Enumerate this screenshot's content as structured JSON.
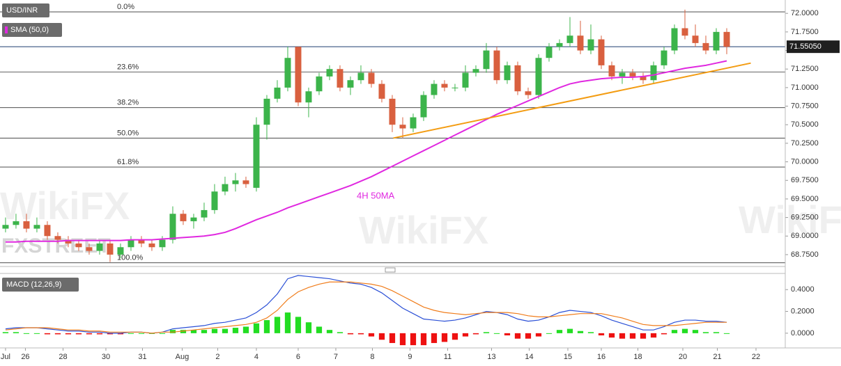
{
  "chart_data": [
    {
      "type": "candlestick",
      "title": "USD/INR",
      "watermark": "WikiFX",
      "source": "FXSTREET",
      "annotation": "4H 50MA",
      "up_color": "#3cb44b",
      "down_color": "#d9603f",
      "xlim": [
        -0.53,
        74.6
      ],
      "ylim": [
        68.59,
        72.18
      ],
      "yticks": [
        {
          "value": 72,
          "label": "72.0000"
        },
        {
          "value": 71.75,
          "label": "71.7500"
        },
        {
          "value": 71.5,
          "label": "71.5000"
        },
        {
          "value": 71.25,
          "label": "71.2500"
        },
        {
          "value": 71,
          "label": "71.0000"
        },
        {
          "value": 70.75,
          "label": "70.7500"
        },
        {
          "value": 70.5,
          "label": "70.5000"
        },
        {
          "value": 70.25,
          "label": "70.2500"
        },
        {
          "value": 70,
          "label": "70.0000"
        },
        {
          "value": 69.75,
          "label": "69.7500"
        },
        {
          "value": 69.5,
          "label": "69.5000"
        },
        {
          "value": 69.25,
          "label": "69.2500"
        },
        {
          "value": 69,
          "label": "69.0000"
        },
        {
          "value": 68.75,
          "label": "68.7500"
        }
      ],
      "last_price": 71.5505,
      "last_price_label": "71.55050",
      "fib_levels": [
        {
          "label": "0.0%",
          "value": 72.02
        },
        {
          "label": "23.6%",
          "value": 71.21
        },
        {
          "label": "38.2%",
          "value": 70.73
        },
        {
          "label": "50.0%",
          "value": 70.32
        },
        {
          "label": "61.8%",
          "value": 69.93
        },
        {
          "label": "100.0%",
          "value": 68.64
        }
      ],
      "trendline": {
        "color": "#f39c12",
        "x": [
          37.1,
          71.3
        ],
        "values": [
          70.32,
          71.33
        ]
      },
      "ohlc": [
        [
          69.1,
          69.25,
          69.05,
          69.15
        ],
        [
          69.15,
          69.3,
          69.1,
          69.2
        ],
        [
          69.2,
          69.3,
          69.05,
          69.1
        ],
        [
          69.1,
          69.25,
          69.05,
          69.15
        ],
        [
          69.15,
          69.2,
          68.95,
          69.0
        ],
        [
          69.0,
          69.05,
          68.9,
          68.95
        ],
        [
          68.95,
          69.0,
          68.85,
          68.9
        ],
        [
          68.9,
          68.95,
          68.8,
          68.85
        ],
        [
          68.85,
          68.9,
          68.75,
          68.8
        ],
        [
          68.8,
          68.95,
          68.75,
          68.9
        ],
        [
          68.9,
          68.95,
          68.65,
          68.75
        ],
        [
          68.75,
          68.9,
          68.7,
          68.85
        ],
        [
          68.85,
          69.0,
          68.8,
          68.95
        ],
        [
          68.95,
          69.0,
          68.85,
          68.9
        ],
        [
          68.9,
          68.95,
          68.8,
          68.85
        ],
        [
          68.85,
          69.0,
          68.8,
          68.95
        ],
        [
          68.95,
          69.4,
          68.9,
          69.3
        ],
        [
          69.3,
          69.35,
          69.15,
          69.2
        ],
        [
          69.2,
          69.3,
          69.1,
          69.25
        ],
        [
          69.25,
          69.45,
          69.2,
          69.35
        ],
        [
          69.35,
          69.7,
          69.3,
          69.6
        ],
        [
          69.6,
          69.8,
          69.55,
          69.7
        ],
        [
          69.7,
          69.85,
          69.6,
          69.75
        ],
        [
          69.75,
          69.8,
          69.65,
          69.7
        ],
        [
          69.65,
          70.6,
          69.6,
          70.5
        ],
        [
          70.5,
          70.9,
          70.3,
          70.85
        ],
        [
          70.85,
          71.1,
          70.8,
          71.0
        ],
        [
          71.0,
          71.55,
          70.95,
          71.4
        ],
        [
          71.55,
          71.55,
          70.75,
          70.8
        ],
        [
          70.8,
          71.0,
          70.6,
          70.95
        ],
        [
          70.95,
          71.2,
          70.9,
          71.15
        ],
        [
          71.15,
          71.3,
          71.1,
          71.25
        ],
        [
          71.25,
          71.3,
          70.95,
          71.0
        ],
        [
          71.0,
          71.15,
          70.9,
          71.1
        ],
        [
          71.1,
          71.3,
          71.05,
          71.2
        ],
        [
          71.2,
          71.25,
          71.0,
          71.05
        ],
        [
          71.05,
          71.1,
          70.8,
          70.85
        ],
        [
          70.85,
          70.9,
          70.4,
          70.5
        ],
        [
          70.5,
          70.6,
          70.32,
          70.45
        ],
        [
          70.45,
          70.65,
          70.4,
          70.6
        ],
        [
          70.6,
          70.95,
          70.55,
          70.9
        ],
        [
          70.9,
          71.1,
          70.85,
          71.05
        ],
        [
          71.05,
          71.1,
          70.95,
          71.0
        ],
        [
          71.0,
          71.05,
          70.95,
          71.0
        ],
        [
          71.0,
          71.3,
          70.95,
          71.2
        ],
        [
          71.2,
          71.3,
          71.15,
          71.25
        ],
        [
          71.25,
          71.6,
          71.2,
          71.5
        ],
        [
          71.5,
          71.55,
          71.05,
          71.1
        ],
        [
          71.1,
          71.35,
          71.05,
          71.3
        ],
        [
          71.3,
          71.35,
          70.9,
          70.95
        ],
        [
          70.95,
          71.0,
          70.85,
          70.9
        ],
        [
          70.9,
          71.45,
          70.85,
          71.4
        ],
        [
          71.4,
          71.6,
          71.35,
          71.55
        ],
        [
          71.55,
          71.65,
          71.5,
          71.6
        ],
        [
          71.6,
          71.95,
          71.55,
          71.7
        ],
        [
          71.7,
          71.9,
          71.45,
          71.5
        ],
        [
          71.5,
          71.85,
          71.45,
          71.65
        ],
        [
          71.65,
          71.7,
          71.25,
          71.3
        ],
        [
          71.3,
          71.35,
          71.1,
          71.15
        ],
        [
          71.15,
          71.25,
          71.05,
          71.2
        ],
        [
          71.2,
          71.25,
          71.1,
          71.15
        ],
        [
          71.15,
          71.2,
          71.05,
          71.1
        ],
        [
          71.1,
          71.35,
          71.05,
          71.3
        ],
        [
          71.3,
          71.55,
          71.25,
          71.5
        ],
        [
          71.5,
          71.85,
          71.45,
          71.8
        ],
        [
          71.8,
          72.05,
          71.65,
          71.7
        ],
        [
          71.7,
          71.85,
          71.55,
          71.6
        ],
        [
          71.6,
          71.7,
          71.45,
          71.5
        ],
        [
          71.5,
          71.8,
          71.45,
          71.75
        ],
        [
          71.75,
          71.8,
          71.45,
          71.55
        ]
      ],
      "series": [
        {
          "name": "SMA (50,0)",
          "color": "#e028e0",
          "values": [
            68.92,
            68.92,
            68.93,
            68.93,
            68.93,
            68.93,
            68.94,
            68.94,
            68.94,
            68.94,
            68.94,
            68.94,
            68.95,
            68.95,
            68.95,
            68.96,
            68.97,
            68.98,
            68.99,
            69.0,
            69.02,
            69.05,
            69.1,
            69.16,
            69.22,
            69.27,
            69.32,
            69.38,
            69.43,
            69.48,
            69.53,
            69.58,
            69.63,
            69.68,
            69.74,
            69.8,
            69.87,
            69.94,
            70.01,
            70.08,
            70.15,
            70.22,
            70.29,
            70.36,
            70.43,
            70.5,
            70.57,
            70.64,
            70.7,
            70.76,
            70.82,
            70.88,
            70.94,
            71.0,
            71.05,
            71.08,
            71.1,
            71.12,
            71.13,
            71.14,
            71.14,
            71.15,
            71.17,
            71.2,
            71.23,
            71.26,
            71.28,
            71.3,
            71.33,
            71.36
          ]
        }
      ]
    },
    {
      "type": "macd",
      "title": "MACD (12,26,9)",
      "xlim": [
        -0.53,
        74.6
      ],
      "ylim": [
        -0.135,
        0.542
      ],
      "yticks": [
        {
          "value": 0.4,
          "label": "0.4000"
        },
        {
          "value": 0.2,
          "label": "0.2000"
        },
        {
          "value": 0,
          "label": "0.0000"
        }
      ],
      "xticks": [
        {
          "value": 0,
          "label": "Jul"
        },
        {
          "value": 1.9,
          "label": "26"
        },
        {
          "value": 5.5,
          "label": "28"
        },
        {
          "value": 9.6,
          "label": "30"
        },
        {
          "value": 13.1,
          "label": "31"
        },
        {
          "value": 16.9,
          "label": "Aug"
        },
        {
          "value": 20.3,
          "label": "2"
        },
        {
          "value": 24,
          "label": "4"
        },
        {
          "value": 28,
          "label": "6"
        },
        {
          "value": 31.6,
          "label": "7"
        },
        {
          "value": 35.1,
          "label": "8"
        },
        {
          "value": 38.7,
          "label": "9"
        },
        {
          "value": 42.3,
          "label": "11"
        },
        {
          "value": 46.5,
          "label": "13"
        },
        {
          "value": 50.1,
          "label": "14"
        },
        {
          "value": 53.8,
          "label": "15"
        },
        {
          "value": 57,
          "label": "16"
        },
        {
          "value": 60.5,
          "label": "18"
        },
        {
          "value": 64.8,
          "label": "20"
        },
        {
          "value": 68.1,
          "label": "21"
        },
        {
          "value": 71.8,
          "label": "22"
        }
      ],
      "histogram": {
        "up_color": "#22dd22",
        "down_color": "#ee1111",
        "values": [
          0.01,
          0.01,
          0.0,
          0.0,
          -0.01,
          -0.01,
          -0.01,
          -0.01,
          -0.01,
          -0.01,
          -0.01,
          -0.01,
          0.0,
          0.0,
          0.0,
          0.0,
          0.03,
          0.03,
          0.03,
          0.03,
          0.04,
          0.04,
          0.05,
          0.06,
          0.09,
          0.12,
          0.15,
          0.19,
          0.15,
          0.1,
          0.06,
          0.03,
          0.01,
          -0.01,
          -0.01,
          -0.03,
          -0.06,
          -0.09,
          -0.11,
          -0.11,
          -0.11,
          -0.09,
          -0.08,
          -0.06,
          -0.03,
          -0.01,
          0.01,
          0.0,
          -0.02,
          -0.05,
          -0.05,
          -0.03,
          0.0,
          0.03,
          0.04,
          0.02,
          0.01,
          -0.02,
          -0.04,
          -0.05,
          -0.05,
          -0.05,
          -0.04,
          -0.01,
          0.03,
          0.04,
          0.03,
          0.01,
          0.01,
          0.0
        ]
      },
      "series": [
        {
          "color": "#2a4fd6",
          "values": [
            0.04,
            0.05,
            0.05,
            0.05,
            0.04,
            0.03,
            0.02,
            0.02,
            0.01,
            0.01,
            0.0,
            0.0,
            0.01,
            0.01,
            0.0,
            0.01,
            0.04,
            0.05,
            0.06,
            0.07,
            0.09,
            0.1,
            0.12,
            0.14,
            0.19,
            0.26,
            0.36,
            0.5,
            0.53,
            0.52,
            0.51,
            0.5,
            0.48,
            0.46,
            0.45,
            0.42,
            0.37,
            0.3,
            0.23,
            0.18,
            0.13,
            0.12,
            0.11,
            0.12,
            0.14,
            0.17,
            0.2,
            0.19,
            0.17,
            0.13,
            0.11,
            0.12,
            0.15,
            0.19,
            0.21,
            0.2,
            0.19,
            0.16,
            0.12,
            0.09,
            0.06,
            0.03,
            0.03,
            0.06,
            0.1,
            0.12,
            0.12,
            0.11,
            0.11,
            0.1
          ]
        },
        {
          "color": "#f07c1a",
          "values": [
            0.03,
            0.04,
            0.05,
            0.05,
            0.05,
            0.04,
            0.03,
            0.03,
            0.02,
            0.02,
            0.01,
            0.01,
            0.01,
            0.01,
            0.0,
            0.01,
            0.01,
            0.02,
            0.03,
            0.04,
            0.05,
            0.06,
            0.07,
            0.08,
            0.1,
            0.14,
            0.21,
            0.31,
            0.38,
            0.42,
            0.45,
            0.47,
            0.47,
            0.47,
            0.46,
            0.45,
            0.43,
            0.39,
            0.34,
            0.29,
            0.24,
            0.21,
            0.19,
            0.18,
            0.17,
            0.18,
            0.19,
            0.19,
            0.19,
            0.18,
            0.16,
            0.15,
            0.15,
            0.16,
            0.17,
            0.18,
            0.18,
            0.18,
            0.16,
            0.14,
            0.11,
            0.08,
            0.07,
            0.07,
            0.07,
            0.08,
            0.09,
            0.1,
            0.1,
            0.1
          ]
        }
      ]
    }
  ]
}
